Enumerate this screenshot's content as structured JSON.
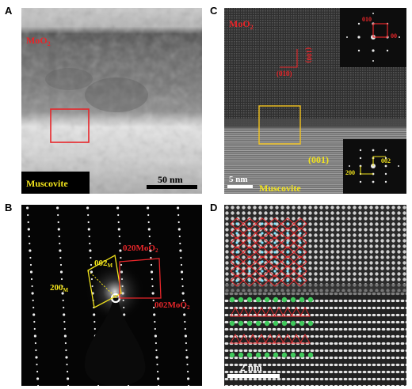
{
  "panels": {
    "A": {
      "letter": "A",
      "film_label": "MoO",
      "film_sub": "2",
      "substrate_label": "Muscovite",
      "scale_bar": "50 nm"
    },
    "B": {
      "letter": "B",
      "spot_020": "020MoO",
      "spot_020_sub": "2",
      "spot_002_mo": "002MoO",
      "spot_002_mo_sub": "2",
      "spot_002m": "002",
      "spot_002m_sub": "M",
      "spot_200m": "200",
      "spot_200m_sub": "M"
    },
    "C": {
      "letter": "C",
      "film_label": "MoO",
      "film_sub": "2",
      "dir_010": "(010)",
      "dir_100": "(100)",
      "plane_001": "(001)",
      "inset_top_a": "010",
      "inset_top_b": "00",
      "inset_bot_a": "002",
      "inset_bot_b": "200",
      "scale_bar": "5 nm",
      "substrate_label": "Muscovite"
    },
    "D": {
      "letter": "D",
      "scale_bar": "2 nm"
    },
    "colors": {
      "red": "#e8262a",
      "yellow": "#f2e41c",
      "green": "#3fc95b",
      "cyan": "#7fe3ff"
    }
  }
}
